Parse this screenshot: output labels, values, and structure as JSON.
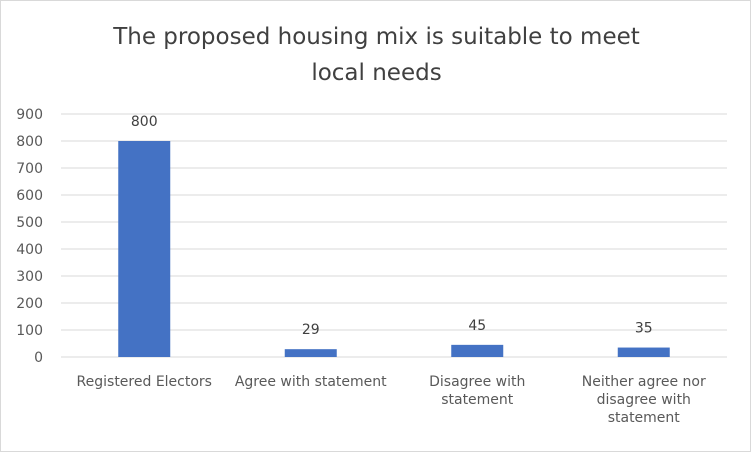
{
  "chart_data": {
    "type": "bar",
    "title_lines": [
      "The proposed housing mix is suitable to meet",
      "local needs"
    ],
    "categories": [
      "Registered Electors",
      "Agree with statement",
      "Disagree with statement",
      "Neither agree nor disagree with statement"
    ],
    "category_lines": [
      [
        "Registered Electors"
      ],
      [
        "Agree with statement"
      ],
      [
        "Disagree with",
        "statement"
      ],
      [
        "Neither agree nor",
        "disagree with",
        "statement"
      ]
    ],
    "values": [
      800,
      29,
      45,
      35
    ],
    "data_labels": [
      "800",
      "29",
      "45",
      "35"
    ],
    "y_ticks": [
      "0",
      "100",
      "200",
      "300",
      "400",
      "500",
      "600",
      "700",
      "800",
      "900"
    ],
    "ylim": [
      0,
      900
    ],
    "grid": true,
    "legend": "none",
    "bar_color": "#4472c4",
    "grid_color": "#d9d9d9"
  }
}
